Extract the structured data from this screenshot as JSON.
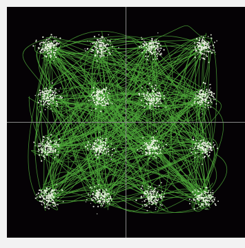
{
  "chart_data": {
    "type": "scatter",
    "title": "",
    "xlabel": "",
    "ylabel": "",
    "xlim": [
      -4.6,
      4.6
    ],
    "ylim": [
      -4.6,
      4.6
    ],
    "grid": false,
    "axes_through_origin": true,
    "constellation_points": [
      {
        "i": -3,
        "q": 3
      },
      {
        "i": -1,
        "q": 3
      },
      {
        "i": 1,
        "q": 3
      },
      {
        "i": 3,
        "q": 3
      },
      {
        "i": -3,
        "q": 1
      },
      {
        "i": -1,
        "q": 1
      },
      {
        "i": 1,
        "q": 1
      },
      {
        "i": 3,
        "q": 1
      },
      {
        "i": -3,
        "q": -1
      },
      {
        "i": -1,
        "q": -1
      },
      {
        "i": 1,
        "q": -1
      },
      {
        "i": 3,
        "q": -1
      },
      {
        "i": -3,
        "q": -3
      },
      {
        "i": -1,
        "q": -3
      },
      {
        "i": 1,
        "q": -3
      },
      {
        "i": 3,
        "q": -3
      }
    ],
    "colors": {
      "background": "#050205",
      "axis": "#8a8a8a",
      "trajectory": "#4fa83a",
      "points": "#eef5e6"
    }
  }
}
